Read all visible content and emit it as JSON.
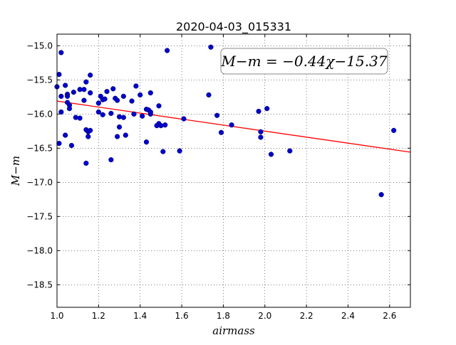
{
  "chart_data": {
    "type": "scatter",
    "title": "2020-04-03_015331",
    "xlabel": "airmass",
    "ylabel": "M−m",
    "xlim": [
      1.0,
      2.7
    ],
    "ylim": [
      -18.83,
      -14.83
    ],
    "y_inverted": true,
    "grid": true,
    "x_ticks": [
      1.0,
      1.2,
      1.4,
      1.6,
      1.8,
      2.0,
      2.2,
      2.4,
      2.6
    ],
    "x_tick_labels": [
      "1.0",
      "1.2",
      "1.4",
      "1.6",
      "1.8",
      "2.0",
      "2.2",
      "2.4",
      "2.6"
    ],
    "y_ticks": [
      -15.0,
      -15.5,
      -16.0,
      -16.5,
      -17.0,
      -17.5,
      -18.0,
      -18.5
    ],
    "y_tick_labels": [
      "−15.0",
      "−15.5",
      "−16.0",
      "−16.5",
      "−17.0",
      "−17.5",
      "−18.0",
      "−18.5"
    ],
    "annotation": "M−m = −0.44χ−15.37",
    "annotation_location": "top-right",
    "fit": {
      "slope": -0.44,
      "intercept": -15.37,
      "color": "#ff0000"
    },
    "point_color": "#0000cc",
    "points": [
      [
        1.0,
        -15.6
      ],
      [
        1.01,
        -15.42
      ],
      [
        1.01,
        -16.43
      ],
      [
        1.02,
        -15.1
      ],
      [
        1.02,
        -15.74
      ],
      [
        1.02,
        -15.97
      ],
      [
        1.04,
        -16.31
      ],
      [
        1.04,
        -15.58
      ],
      [
        1.05,
        -15.71
      ],
      [
        1.05,
        -15.74
      ],
      [
        1.05,
        -15.83
      ],
      [
        1.06,
        -15.87
      ],
      [
        1.06,
        -15.92
      ],
      [
        1.07,
        -16.46
      ],
      [
        1.08,
        -15.68
      ],
      [
        1.09,
        -16.05
      ],
      [
        1.11,
        -16.06
      ],
      [
        1.11,
        -15.64
      ],
      [
        1.13,
        -15.64
      ],
      [
        1.13,
        -15.8
      ],
      [
        1.14,
        -15.53
      ],
      [
        1.14,
        -16.72
      ],
      [
        1.14,
        -16.23
      ],
      [
        1.15,
        -16.33
      ],
      [
        1.15,
        -16.26
      ],
      [
        1.16,
        -16.24
      ],
      [
        1.16,
        -15.43
      ],
      [
        1.16,
        -15.69
      ],
      [
        1.2,
        -15.84
      ],
      [
        1.2,
        -15.97
      ],
      [
        1.21,
        -15.74
      ],
      [
        1.22,
        -15.79
      ],
      [
        1.22,
        -16.01
      ],
      [
        1.23,
        -15.78
      ],
      [
        1.24,
        -15.67
      ],
      [
        1.26,
        -15.99
      ],
      [
        1.26,
        -16.67
      ],
      [
        1.27,
        -15.63
      ],
      [
        1.28,
        -15.77
      ],
      [
        1.29,
        -15.8
      ],
      [
        1.29,
        -16.33
      ],
      [
        1.3,
        -16.04
      ],
      [
        1.3,
        -16.19
      ],
      [
        1.32,
        -15.74
      ],
      [
        1.32,
        -16.05
      ],
      [
        1.33,
        -16.31
      ],
      [
        1.36,
        -15.81
      ],
      [
        1.37,
        -16.0
      ],
      [
        1.38,
        -15.59
      ],
      [
        1.4,
        -15.72
      ],
      [
        1.41,
        -16.03
      ],
      [
        1.43,
        -15.93
      ],
      [
        1.43,
        -16.41
      ],
      [
        1.44,
        -15.94
      ],
      [
        1.45,
        -16.0
      ],
      [
        1.45,
        -15.97
      ],
      [
        1.45,
        -15.69
      ],
      [
        1.48,
        -16.17
      ],
      [
        1.49,
        -15.88
      ],
      [
        1.49,
        -16.14
      ],
      [
        1.5,
        -16.17
      ],
      [
        1.51,
        -16.55
      ],
      [
        1.52,
        -16.16
      ],
      [
        1.53,
        -15.07
      ],
      [
        1.59,
        -16.54
      ],
      [
        1.61,
        -16.07
      ],
      [
        1.73,
        -15.72
      ],
      [
        1.74,
        -15.02
      ],
      [
        1.77,
        -16.02
      ],
      [
        1.79,
        -16.27
      ],
      [
        1.84,
        -16.16
      ],
      [
        1.97,
        -15.96
      ],
      [
        1.98,
        -16.34
      ],
      [
        1.98,
        -16.26
      ],
      [
        2.01,
        -15.92
      ],
      [
        2.03,
        -16.59
      ],
      [
        2.12,
        -16.54
      ],
      [
        2.56,
        -17.18
      ],
      [
        2.62,
        -16.24
      ]
    ]
  }
}
